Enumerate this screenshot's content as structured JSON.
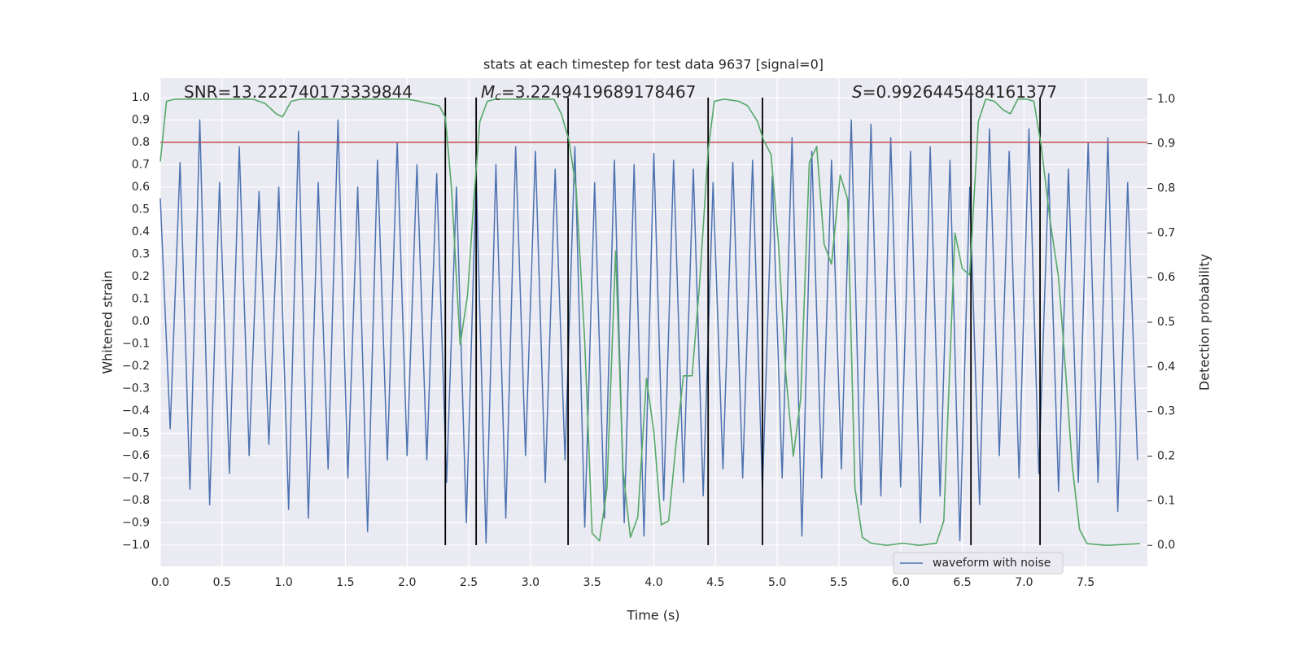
{
  "chart_data": {
    "type": "line",
    "title": "stats at each timestep for test data 9637 [signal=0]",
    "xlabel": "Time (s)",
    "ylabel": "Whitened strain",
    "y2label": "Detection probability",
    "annotations": [
      {
        "text": "SNR=13.222740173339844"
      },
      {
        "symbol": "M",
        "subscript": "c",
        "text": "=3.2249419689178467"
      },
      {
        "symbol": "S",
        "text": "=0.9926445484161377"
      }
    ],
    "xlim": [
      0,
      8.0
    ],
    "ylim": [
      -1.095,
      1.087
    ],
    "y2lim": [
      -0.047,
      1.047
    ],
    "xticks": [
      {
        "value": 0,
        "label": "0.0"
      },
      {
        "value": 0.5,
        "label": "0.5"
      },
      {
        "value": 1,
        "label": "1.0"
      },
      {
        "value": 1.5,
        "label": "1.5"
      },
      {
        "value": 2,
        "label": "2.0"
      },
      {
        "value": 2.5,
        "label": "2.5"
      },
      {
        "value": 3,
        "label": "3.0"
      },
      {
        "value": 3.5,
        "label": "3.5"
      },
      {
        "value": 4,
        "label": "4.0"
      },
      {
        "value": 4.5,
        "label": "4.5"
      },
      {
        "value": 5,
        "label": "5.0"
      },
      {
        "value": 5.5,
        "label": "5.5"
      },
      {
        "value": 6,
        "label": "6.0"
      },
      {
        "value": 6.5,
        "label": "6.5"
      },
      {
        "value": 7,
        "label": "7.0"
      },
      {
        "value": 7.5,
        "label": "7.5"
      }
    ],
    "yticks": [
      {
        "value": -1,
        "label": "−1.0"
      },
      {
        "value": -0.9,
        "label": "−0.9"
      },
      {
        "value": -0.8,
        "label": "−0.8"
      },
      {
        "value": -0.7,
        "label": "−0.7"
      },
      {
        "value": -0.6,
        "label": "−0.6"
      },
      {
        "value": -0.5,
        "label": "−0.5"
      },
      {
        "value": -0.4,
        "label": "−0.4"
      },
      {
        "value": -0.3,
        "label": "−0.3"
      },
      {
        "value": -0.2,
        "label": "−0.2"
      },
      {
        "value": -0.1,
        "label": "−0.1"
      },
      {
        "value": 0,
        "label": "0.0"
      },
      {
        "value": 0.1,
        "label": "0.1"
      },
      {
        "value": 0.2,
        "label": "0.2"
      },
      {
        "value": 0.3,
        "label": "0.3"
      },
      {
        "value": 0.4,
        "label": "0.4"
      },
      {
        "value": 0.5,
        "label": "0.5"
      },
      {
        "value": 0.6,
        "label": "0.6"
      },
      {
        "value": 0.7,
        "label": "0.7"
      },
      {
        "value": 0.8,
        "label": "0.8"
      },
      {
        "value": 0.9,
        "label": "0.9"
      },
      {
        "value": 1,
        "label": "1.0"
      }
    ],
    "y2ticks": [
      {
        "value": 0,
        "label": "0.0"
      },
      {
        "value": 0.1,
        "label": "0.1"
      },
      {
        "value": 0.2,
        "label": "0.2"
      },
      {
        "value": 0.3,
        "label": "0.3"
      },
      {
        "value": 0.4,
        "label": "0.4"
      },
      {
        "value": 0.5,
        "label": "0.5"
      },
      {
        "value": 0.6,
        "label": "0.6"
      },
      {
        "value": 0.7,
        "label": "0.7"
      },
      {
        "value": 0.8,
        "label": "0.8"
      },
      {
        "value": 0.9,
        "label": "0.9"
      },
      {
        "value": 1,
        "label": "1.0"
      }
    ],
    "grid": true,
    "legend": "lower right",
    "series": [
      {
        "name": "waveform with noise",
        "color": "#4c72b0",
        "x": [
          0,
          0.08,
          0.16,
          0.24,
          0.32,
          0.4,
          0.48,
          0.56,
          0.64,
          0.72,
          0.8,
          0.88,
          0.96,
          1.04,
          1.12,
          1.2,
          1.28,
          1.36,
          1.44,
          1.52,
          1.6,
          1.68,
          1.76,
          1.84,
          1.92,
          2,
          2.08,
          2.16,
          2.24,
          2.32,
          2.4,
          2.48,
          2.56,
          2.64,
          2.72,
          2.8,
          2.88,
          2.96,
          3.04,
          3.12,
          3.2,
          3.28,
          3.36,
          3.44,
          3.52,
          3.6,
          3.68,
          3.76,
          3.84,
          3.92,
          4,
          4.08,
          4.16,
          4.24,
          4.32,
          4.4,
          4.48,
          4.56,
          4.64,
          4.72,
          4.8,
          4.88,
          4.96,
          5.04,
          5.12,
          5.2,
          5.28,
          5.36,
          5.44,
          5.52,
          5.6,
          5.68,
          5.76,
          5.84,
          5.92,
          6,
          6.08,
          6.16,
          6.24,
          6.32,
          6.4,
          6.48,
          6.56,
          6.64,
          6.72,
          6.8,
          6.88,
          6.96,
          7.04,
          7.12,
          7.2,
          7.28,
          7.36,
          7.44,
          7.52,
          7.6,
          7.68,
          7.76,
          7.84,
          7.92
        ],
        "values": [
          0.55,
          -0.48,
          0.71,
          -0.75,
          0.9,
          -0.82,
          0.62,
          -0.68,
          0.78,
          -0.6,
          0.58,
          -0.55,
          0.6,
          -0.84,
          0.85,
          -0.88,
          0.62,
          -0.66,
          0.9,
          -0.7,
          0.6,
          -0.94,
          0.72,
          -0.62,
          0.8,
          -0.6,
          0.7,
          -0.62,
          0.66,
          -0.72,
          0.6,
          -0.9,
          0.65,
          -0.99,
          0.7,
          -0.88,
          0.78,
          -0.6,
          0.76,
          -0.72,
          0.68,
          -0.62,
          0.78,
          -0.92,
          0.62,
          -0.88,
          0.72,
          -0.9,
          0.7,
          -0.96,
          0.75,
          -0.8,
          0.72,
          -0.72,
          0.68,
          -0.78,
          0.62,
          -0.66,
          0.71,
          -0.7,
          0.72,
          -0.76,
          0.65,
          -0.7,
          0.82,
          -0.96,
          0.76,
          -0.7,
          0.72,
          -0.66,
          0.9,
          -0.82,
          0.88,
          -0.78,
          0.82,
          -0.74,
          0.76,
          -0.9,
          0.78,
          -0.78,
          0.72,
          -0.98,
          0.6,
          -0.82,
          0.86,
          -0.6,
          0.76,
          -0.7,
          0.86,
          -0.68,
          0.66,
          -0.76,
          0.68,
          -0.72,
          0.8,
          -0.72,
          0.82,
          -0.85,
          0.62,
          -0.62
        ]
      },
      {
        "color": "#55a868",
        "axis": "y2",
        "x": [
          0,
          0.05,
          0.12,
          0.75,
          0.85,
          0.94,
          0.99,
          1.06,
          1.14,
          2.0,
          2.1,
          2.26,
          2.31,
          2.36,
          2.43,
          2.49,
          2.54,
          2.59,
          2.65,
          2.72,
          3.19,
          3.25,
          3.31,
          3.37,
          3.44,
          3.5,
          3.56,
          3.62,
          3.69,
          3.75,
          3.81,
          3.87,
          3.94,
          4.0,
          4.06,
          4.12,
          4.18,
          4.24,
          4.31,
          4.37,
          4.44,
          4.49,
          4.57,
          4.69,
          4.76,
          4.84,
          4.89,
          4.95,
          5.01,
          5.07,
          5.13,
          5.19,
          5.26,
          5.32,
          5.38,
          5.44,
          5.51,
          5.57,
          5.63,
          5.69,
          5.76,
          5.89,
          6.02,
          6.15,
          6.29,
          6.35,
          6.44,
          6.5,
          6.56,
          6.63,
          6.69,
          6.76,
          6.83,
          6.89,
          6.95,
          7.02,
          7.08,
          7.14,
          7.21,
          7.28,
          7.34,
          7.39,
          7.45,
          7.51,
          7.67,
          7.94
        ],
        "values": [
          0.86,
          0.995,
          1.0,
          1.0,
          0.99,
          0.967,
          0.96,
          0.995,
          1.0,
          1.0,
          0.995,
          0.985,
          0.96,
          0.8,
          0.45,
          0.56,
          0.77,
          0.95,
          0.995,
          1.0,
          1.0,
          0.967,
          0.91,
          0.8,
          0.456,
          0.027,
          0.01,
          0.128,
          0.66,
          0.17,
          0.018,
          0.064,
          0.374,
          0.255,
          0.046,
          0.055,
          0.228,
          0.38,
          0.38,
          0.584,
          0.885,
          0.995,
          1.0,
          0.995,
          0.985,
          0.95,
          0.907,
          0.876,
          0.675,
          0.383,
          0.2,
          0.328,
          0.858,
          0.894,
          0.675,
          0.63,
          0.83,
          0.776,
          0.128,
          0.018,
          0.005,
          0.0,
          0.005,
          0.0,
          0.005,
          0.055,
          0.7,
          0.62,
          0.606,
          0.95,
          1.0,
          0.995,
          0.976,
          0.967,
          1.0,
          1.0,
          0.995,
          0.894,
          0.73,
          0.6,
          0.38,
          0.18,
          0.036,
          0.004,
          0.0,
          0.004
        ]
      }
    ],
    "hline": {
      "y": 0.8,
      "color": "#c44e52"
    },
    "vlines": {
      "x": [
        2.31,
        2.56,
        3.305,
        4.44,
        4.88,
        6.57,
        7.13
      ],
      "ymin": -1.0,
      "ymax": 1.0,
      "color": "#000000"
    }
  }
}
